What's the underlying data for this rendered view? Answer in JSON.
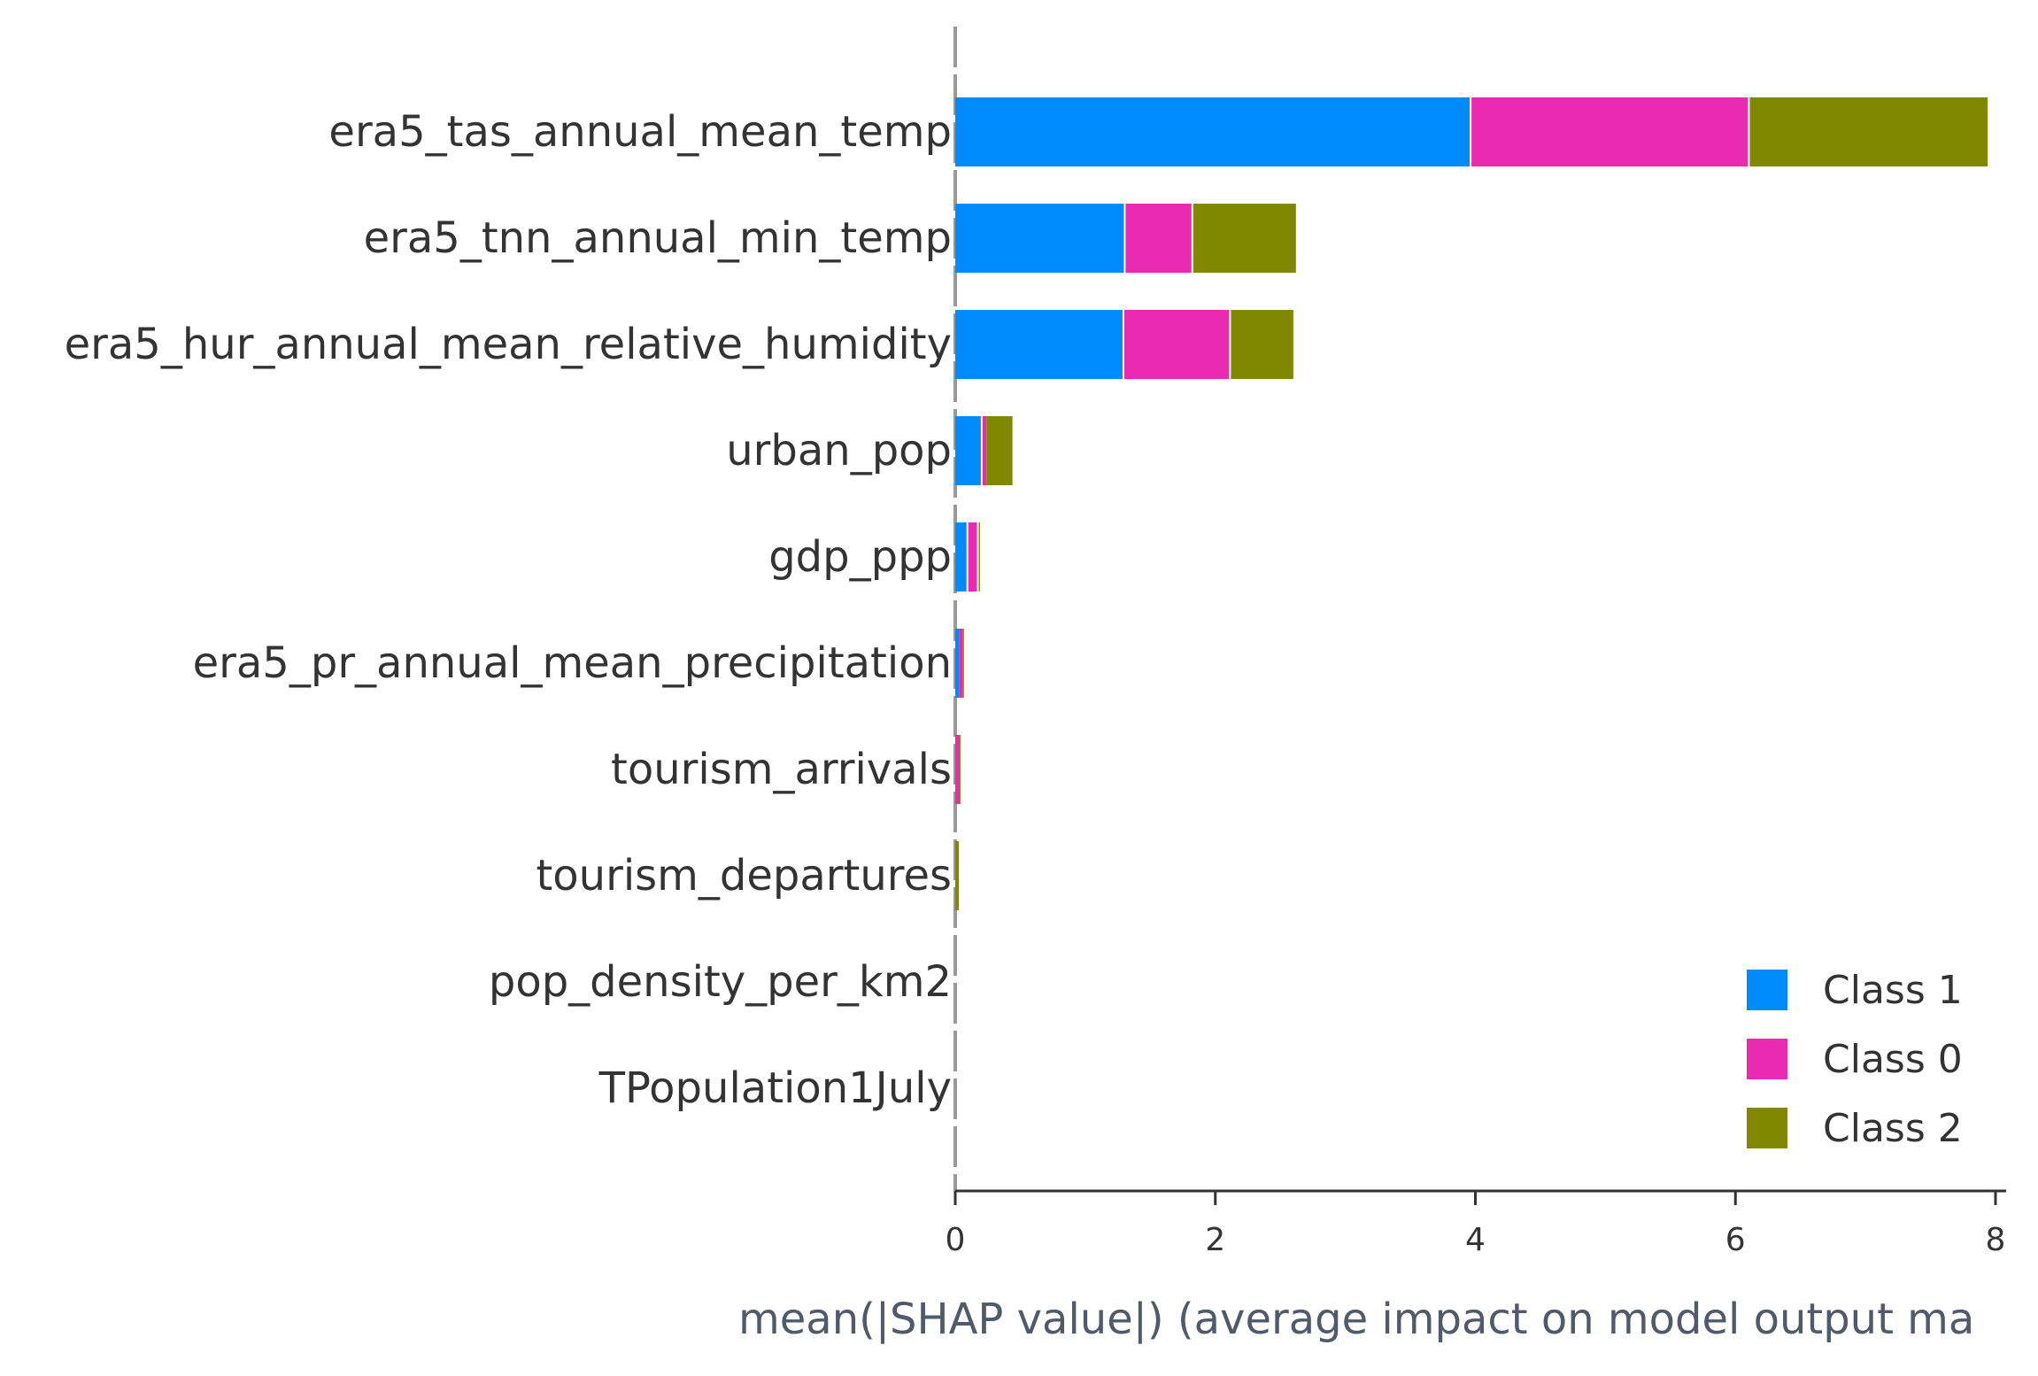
{
  "chart_data": {
    "type": "bar",
    "stacked": true,
    "orientation": "horizontal",
    "categories": [
      "era5_tas_annual_mean_temp",
      "era5_tnn_annual_min_temp",
      "era5_hur_annual_mean_relative_humidity",
      "urban_pop",
      "gdp_ppp",
      "era5_pr_annual_mean_precipitation",
      "tourism_arrivals",
      "tourism_departures",
      "pop_density_per_km2",
      "TPopulation1July"
    ],
    "series": [
      {
        "name": "Class 1",
        "color": "#008bfb",
        "values": [
          3.97,
          1.31,
          1.3,
          0.21,
          0.1,
          0.03,
          0.005,
          0.0,
          0.0,
          0.0
        ]
      },
      {
        "name": "Class 0",
        "color": "#e92bb2",
        "values": [
          2.14,
          0.52,
          0.82,
          0.03,
          0.08,
          0.03,
          0.03,
          0.002,
          0.0,
          0.0
        ]
      },
      {
        "name": "Class 2",
        "color": "#808800",
        "values": [
          1.83,
          0.79,
          0.48,
          0.2,
          0.01,
          0.005,
          0.003,
          0.025,
          0.0,
          0.0
        ]
      }
    ],
    "xlabel": "mean(|SHAP value|) (average impact on model output ma",
    "ylabel": "",
    "title": "",
    "xlim": [
      0,
      8
    ],
    "xticks": [
      "0",
      "2",
      "4",
      "6",
      "8"
    ],
    "legend_position": "bottom-right",
    "grid": false
  }
}
